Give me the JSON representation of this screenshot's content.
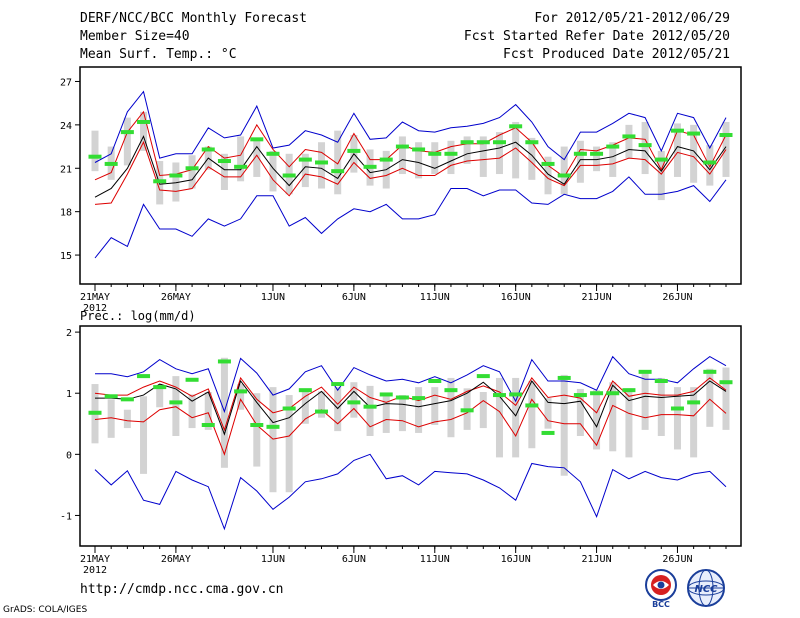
{
  "header": {
    "title": "DERF/NCC/BCC Monthly Forecast",
    "member_size": "Member Size=40",
    "variable": "Mean Surf. Temp.: °C",
    "period": "For 2012/05/21-2012/06/29",
    "fcst_started": "Fcst Started Refer Date 2012/05/20",
    "fcst_produced": "Fcst Produced Date 2012/05/21"
  },
  "footer": {
    "url": "http://cmdp.ncc.cma.gov.cn",
    "credit": "GrADS: COLA/IGES",
    "logo_left_text": "BCC",
    "logo_right_text": "NCC"
  },
  "colors": {
    "box": "#d3d3d3",
    "median": "#33dd33",
    "max": "#0000cc",
    "min": "#0000cc",
    "upper": "#dd0000",
    "lower": "#dd0000",
    "mean": "#000000"
  },
  "chart_data": [
    {
      "type": "line",
      "title": "Mean Surf. Temp.: °C",
      "ylim": [
        13,
        28
      ],
      "yticks": [
        15,
        18,
        21,
        24,
        27
      ],
      "xtick_labels": [
        "21MAY",
        "26MAY",
        "1JUN",
        "6JUN",
        "11JUN",
        "16JUN",
        "21JUN",
        "26JUN"
      ],
      "xtick_days": [
        1,
        6,
        12,
        17,
        22,
        27,
        32,
        37
      ],
      "year_label": "2012",
      "x": [
        1,
        2,
        3,
        4,
        5,
        6,
        7,
        8,
        9,
        10,
        11,
        12,
        13,
        14,
        15,
        16,
        17,
        18,
        19,
        20,
        21,
        22,
        23,
        24,
        25,
        26,
        27,
        28,
        29,
        30,
        31,
        32,
        33,
        34,
        35,
        36,
        37,
        38,
        39,
        40
      ],
      "series": [
        {
          "name": "max",
          "values": [
            21.4,
            22.0,
            24.9,
            26.3,
            21.7,
            22.0,
            22.0,
            23.8,
            23.1,
            23.3,
            25.3,
            22.4,
            22.6,
            23.6,
            23.3,
            22.8,
            24.8,
            23.0,
            23.1,
            24.2,
            23.6,
            23.5,
            23.8,
            23.9,
            24.1,
            24.5,
            25.4,
            24.2,
            22.5,
            21.6,
            23.5,
            23.5,
            24.1,
            24.8,
            24.5,
            22.2,
            24.8,
            24.5,
            22.4,
            24.5
          ]
        },
        {
          "name": "upper",
          "values": [
            20.2,
            20.7,
            23.5,
            24.9,
            20.5,
            20.6,
            20.9,
            22.5,
            21.7,
            21.9,
            24.0,
            22.3,
            21.1,
            22.3,
            22.1,
            21.3,
            23.4,
            21.6,
            21.6,
            22.6,
            22.2,
            22.1,
            22.5,
            22.7,
            22.7,
            23.3,
            23.8,
            22.8,
            21.2,
            20.4,
            22.3,
            22.2,
            22.6,
            23.1,
            23.0,
            20.9,
            23.6,
            23.3,
            21.1,
            23.3
          ]
        },
        {
          "name": "mean",
          "values": [
            19.0,
            19.6,
            21.0,
            23.2,
            19.9,
            20.0,
            20.2,
            21.7,
            20.9,
            20.9,
            22.5,
            21.0,
            19.8,
            21.1,
            21.0,
            20.3,
            22.0,
            20.7,
            20.9,
            21.6,
            21.4,
            21.0,
            21.5,
            22.0,
            22.2,
            22.4,
            22.8,
            21.9,
            20.6,
            19.9,
            21.6,
            21.6,
            21.8,
            22.3,
            22.2,
            20.8,
            22.5,
            22.2,
            20.9,
            22.5
          ]
        },
        {
          "name": "lower",
          "values": [
            18.5,
            18.6,
            20.6,
            22.8,
            19.5,
            19.4,
            19.6,
            21.1,
            20.4,
            20.4,
            21.9,
            20.2,
            19.1,
            20.6,
            20.4,
            19.9,
            21.4,
            20.3,
            20.5,
            21.0,
            20.5,
            20.5,
            21.2,
            21.5,
            21.6,
            21.7,
            22.4,
            21.4,
            20.3,
            19.8,
            21.2,
            21.2,
            21.3,
            21.7,
            21.6,
            20.6,
            22.1,
            21.8,
            20.6,
            22.3
          ]
        },
        {
          "name": "min",
          "values": [
            14.8,
            16.2,
            15.6,
            18.5,
            16.8,
            16.8,
            16.3,
            17.5,
            17.0,
            17.5,
            19.1,
            19.1,
            17.0,
            17.6,
            16.5,
            17.5,
            18.2,
            18.0,
            18.5,
            17.5,
            17.5,
            17.8,
            19.6,
            19.6,
            19.1,
            19.5,
            19.5,
            18.6,
            18.5,
            19.2,
            18.9,
            18.9,
            19.4,
            20.4,
            19.2,
            19.2,
            19.4,
            19.8,
            18.7,
            20.2
          ]
        },
        {
          "name": "median",
          "values": [
            21.8,
            21.3,
            23.5,
            24.2,
            20.1,
            20.5,
            21.0,
            22.3,
            21.5,
            21.1,
            23.0,
            22.0,
            20.5,
            21.6,
            21.4,
            20.8,
            22.2,
            21.1,
            21.6,
            22.5,
            22.3,
            22.0,
            22.0,
            22.8,
            22.8,
            22.8,
            23.9,
            22.8,
            21.3,
            20.5,
            22.0,
            22.0,
            22.5,
            23.2,
            22.6,
            21.6,
            23.6,
            23.4,
            21.4,
            23.3
          ]
        }
      ],
      "box_low": [
        20.8,
        20.2,
        21.2,
        22.2,
        18.5,
        18.7,
        19.6,
        20.9,
        19.5,
        20.1,
        20.4,
        19.4,
        19.2,
        19.7,
        19.6,
        19.2,
        20.7,
        19.8,
        19.6,
        20.6,
        20.3,
        20.6,
        20.6,
        21.3,
        20.4,
        20.6,
        20.3,
        20.2,
        19.2,
        19.2,
        20.0,
        20.8,
        20.4,
        21.7,
        20.6,
        18.8,
        20.4,
        20.0,
        19.8,
        20.4
      ],
      "box_high": [
        23.6,
        22.5,
        24.5,
        24.9,
        21.5,
        21.4,
        21.9,
        22.5,
        22.0,
        23.2,
        23.1,
        22.2,
        22.0,
        22.0,
        22.8,
        23.6,
        23.3,
        22.3,
        22.2,
        23.2,
        22.8,
        22.8,
        22.9,
        23.2,
        23.2,
        23.5,
        24.2,
        23.1,
        21.8,
        22.5,
        22.9,
        22.5,
        22.8,
        24.0,
        24.2,
        22.2,
        24.1,
        24.0,
        22.6,
        24.2
      ]
    },
    {
      "type": "line",
      "title": "Prec.: log(mm/d)",
      "ylim": [
        -1.5,
        2.1
      ],
      "yticks": [
        -1,
        0,
        1,
        2
      ],
      "xtick_labels": [
        "21MAY",
        "26MAY",
        "1JUN",
        "6JUN",
        "11JUN",
        "16JUN",
        "21JUN",
        "26JUN"
      ],
      "xtick_days": [
        1,
        6,
        12,
        17,
        22,
        27,
        32,
        37
      ],
      "year_label": "2012",
      "x": [
        1,
        2,
        3,
        4,
        5,
        6,
        7,
        8,
        9,
        10,
        11,
        12,
        13,
        14,
        15,
        16,
        17,
        18,
        19,
        20,
        21,
        22,
        23,
        24,
        25,
        26,
        27,
        28,
        29,
        30,
        31,
        32,
        33,
        34,
        35,
        36,
        37,
        38,
        39,
        40
      ],
      "series": [
        {
          "name": "max",
          "values": [
            1.32,
            1.32,
            1.27,
            1.35,
            1.55,
            1.4,
            1.32,
            1.4,
            0.7,
            1.57,
            1.33,
            0.97,
            1.07,
            1.35,
            1.45,
            1.05,
            1.42,
            1.3,
            1.2,
            1.23,
            1.17,
            1.27,
            1.17,
            1.3,
            1.45,
            1.35,
            0.87,
            1.55,
            1.2,
            1.2,
            1.17,
            1.05,
            1.6,
            1.32,
            1.23,
            1.23,
            1.17,
            1.4,
            1.6,
            1.45
          ]
        },
        {
          "name": "upper",
          "values": [
            1.0,
            0.97,
            0.97,
            1.1,
            1.2,
            1.1,
            0.95,
            1.07,
            0.4,
            1.25,
            0.9,
            0.68,
            0.75,
            0.95,
            1.1,
            0.82,
            1.1,
            0.93,
            0.85,
            0.95,
            0.88,
            0.97,
            0.9,
            1.03,
            1.12,
            1.02,
            0.8,
            1.25,
            0.93,
            0.97,
            0.92,
            0.68,
            1.2,
            0.95,
            1.0,
            0.97,
            0.97,
            1.03,
            1.25,
            1.05
          ]
        },
        {
          "name": "mean",
          "values": [
            0.92,
            0.92,
            0.9,
            0.97,
            1.15,
            1.07,
            0.87,
            1.02,
            0.33,
            1.2,
            0.85,
            0.52,
            0.6,
            0.83,
            1.03,
            0.75,
            1.03,
            0.77,
            0.83,
            0.82,
            0.78,
            0.83,
            0.88,
            1.0,
            1.18,
            0.95,
            0.63,
            1.2,
            0.85,
            0.83,
            0.87,
            0.45,
            1.13,
            0.88,
            0.95,
            0.93,
            0.95,
            0.97,
            1.2,
            1.03
          ]
        },
        {
          "name": "lower",
          "values": [
            0.57,
            0.6,
            0.55,
            0.53,
            0.73,
            0.78,
            0.6,
            0.68,
            0.0,
            0.9,
            0.48,
            0.25,
            0.3,
            0.58,
            0.73,
            0.5,
            0.75,
            0.45,
            0.57,
            0.55,
            0.45,
            0.53,
            0.57,
            0.68,
            0.88,
            0.7,
            0.3,
            0.9,
            0.55,
            0.5,
            0.5,
            0.15,
            0.8,
            0.67,
            0.6,
            0.65,
            0.65,
            0.63,
            0.9,
            0.67
          ]
        },
        {
          "name": "min",
          "values": [
            -0.25,
            -0.5,
            -0.27,
            -0.75,
            -0.82,
            -0.28,
            -0.42,
            -0.53,
            -1.22,
            -0.38,
            -0.6,
            -0.9,
            -0.7,
            -0.45,
            -0.4,
            -0.32,
            -0.1,
            0.0,
            -0.4,
            -0.35,
            -0.5,
            -0.28,
            -0.3,
            -0.32,
            -0.42,
            -0.55,
            -0.75,
            -0.15,
            -0.2,
            -0.22,
            -0.45,
            -1.02,
            -0.25,
            -0.4,
            -0.28,
            -0.38,
            -0.42,
            -0.32,
            -0.28,
            -0.53
          ]
        },
        {
          "name": "median",
          "values": [
            0.68,
            0.95,
            0.9,
            1.28,
            1.1,
            0.85,
            1.22,
            0.48,
            1.52,
            1.03,
            0.48,
            0.45,
            0.75,
            1.05,
            0.7,
            1.15,
            0.85,
            0.78,
            0.98,
            0.93,
            0.92,
            1.2,
            1.05,
            0.72,
            1.28,
            0.97,
            0.98,
            0.8,
            0.35,
            1.25,
            0.97,
            1.0,
            1.0,
            1.05,
            1.35,
            1.2,
            0.75,
            0.85,
            1.35,
            1.18
          ]
        }
      ],
      "box_low": [
        0.18,
        0.27,
        0.43,
        -0.32,
        0.77,
        0.3,
        0.43,
        0.4,
        -0.22,
        0.73,
        -0.2,
        -0.62,
        -0.62,
        0.5,
        0.6,
        0.38,
        0.6,
        0.3,
        0.35,
        0.38,
        0.35,
        0.48,
        0.28,
        0.4,
        0.43,
        -0.05,
        -0.05,
        0.1,
        0.42,
        -0.35,
        0.3,
        0.08,
        0.05,
        -0.05,
        0.4,
        0.3,
        0.08,
        -0.05,
        0.45,
        0.4
      ],
      "box_high": [
        1.15,
        0.9,
        0.73,
        0.95,
        1.12,
        1.28,
        0.98,
        1.02,
        1.58,
        1.15,
        1.0,
        1.1,
        0.97,
        1.05,
        1.03,
        1.1,
        1.18,
        1.12,
        1.0,
        0.97,
        1.1,
        1.1,
        1.25,
        1.08,
        1.02,
        1.25,
        1.25,
        1.2,
        0.92,
        1.3,
        1.07,
        1.05,
        1.18,
        1.08,
        1.38,
        1.25,
        1.1,
        1.1,
        1.4,
        1.42
      ]
    }
  ]
}
